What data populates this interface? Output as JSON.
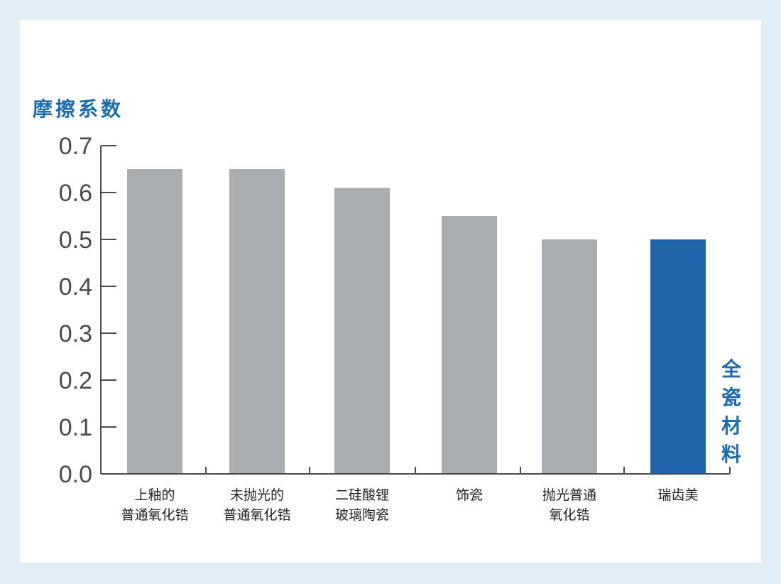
{
  "chart_data": {
    "type": "bar",
    "ylabel": "摩擦系数",
    "ylim": [
      0,
      0.7
    ],
    "yticks": [
      "0.0",
      "0.1",
      "0.2",
      "0.3",
      "0.4",
      "0.5",
      "0.6",
      "0.7"
    ],
    "categories": [
      [
        "上釉的",
        "普通氧化锆"
      ],
      [
        "未抛光的",
        "普通氧化锆"
      ],
      [
        "二硅酸锂",
        "玻璃陶瓷"
      ],
      [
        "饰瓷"
      ],
      [
        "抛光普通",
        "氧化锆"
      ],
      [
        "瑞齿美"
      ]
    ],
    "values": [
      0.65,
      0.65,
      0.61,
      0.55,
      0.5,
      0.5
    ],
    "bar_colors": [
      "#a9adb0",
      "#a9adb0",
      "#a9adb0",
      "#a9adb0",
      "#a9adb0",
      "#1f63a8"
    ],
    "annotation": "全瓷材料",
    "grid": false
  },
  "colors": {
    "accent": "#1a6bb0",
    "axis": "#4a4a4a",
    "background": "#e2eef6"
  }
}
